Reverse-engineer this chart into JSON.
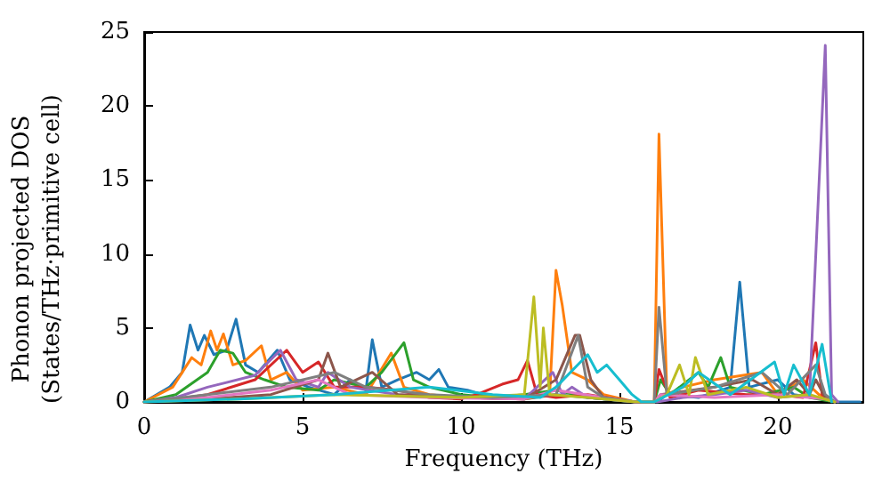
{
  "chart_data": {
    "type": "line",
    "xlabel": "Frequency (THz)",
    "ylabel": "Phonon projected DOS\n(States/THz·primitive cell)",
    "xlim": [
      0,
      22.7
    ],
    "xticks": [
      0,
      5,
      10,
      15,
      20
    ],
    "ylim": [
      0,
      25
    ],
    "yticks": [
      0,
      5,
      10,
      15,
      20,
      25
    ],
    "grid": false,
    "marker": "none",
    "line_style": "solid",
    "series": [
      {
        "color": "#1f77b4",
        "x": [
          0,
          0.8,
          1.2,
          1.45,
          1.7,
          1.9,
          2.2,
          2.6,
          2.9,
          3.2,
          3.6,
          4.2,
          4.6,
          5.2,
          6,
          6.5,
          7,
          7.2,
          7.5,
          8,
          8.6,
          9,
          9.3,
          9.6,
          10.2,
          11,
          12,
          13,
          14,
          15.5,
          16.2,
          16.5,
          17.5,
          18.5,
          18.8,
          19.1,
          20,
          20.5,
          21.5,
          21.8,
          22.6
        ],
        "values": [
          0,
          1,
          2,
          5.2,
          3.5,
          4.5,
          3.2,
          3.5,
          5.6,
          2.5,
          2,
          3.5,
          1.5,
          1,
          0.5,
          1.5,
          0.8,
          4.2,
          1,
          1.5,
          2,
          1.5,
          2.2,
          1,
          0.8,
          0.3,
          0.2,
          0.5,
          0.3,
          0,
          0,
          0.5,
          0.3,
          1,
          8.1,
          1,
          1.5,
          0.5,
          0.2,
          0,
          0
        ]
      },
      {
        "color": "#ff7f0e",
        "x": [
          0,
          0.9,
          1.5,
          1.8,
          2.1,
          2.3,
          2.5,
          2.8,
          3.2,
          3.7,
          4,
          4.5,
          5,
          6,
          7,
          7.8,
          8.2,
          9,
          10,
          12,
          12.8,
          13,
          13.2,
          13.5,
          14,
          14.5,
          15.5,
          16.1,
          16.25,
          16.5,
          17,
          18,
          19.5,
          20,
          20.8,
          21.3,
          21.8
        ],
        "values": [
          0,
          1,
          3,
          2.5,
          4.8,
          3.5,
          4.6,
          2.5,
          2.8,
          3.8,
          1.5,
          2,
          0.8,
          1,
          0.5,
          3.3,
          1,
          0.5,
          0.3,
          0.2,
          0.5,
          8.9,
          6.5,
          2,
          1.5,
          0.5,
          0,
          0,
          18.1,
          0.5,
          1,
          1.5,
          2,
          0.5,
          1.5,
          0.5,
          0
        ]
      },
      {
        "color": "#2ca02c",
        "x": [
          0,
          1,
          2,
          2.4,
          2.8,
          3.2,
          3.8,
          4.5,
          5.5,
          6,
          7,
          7.5,
          8.2,
          8.5,
          9,
          10,
          11,
          12,
          13,
          14,
          15.5,
          16.1,
          16.3,
          16.6,
          17.5,
          17.8,
          18.2,
          18.5,
          19.5,
          20.5,
          21,
          21.8
        ],
        "values": [
          0,
          0.5,
          2,
          3.5,
          3.3,
          2,
          1.5,
          1,
          0.8,
          1.5,
          1,
          2,
          4,
          1.5,
          1,
          0.5,
          0.3,
          0.5,
          0.8,
          0.3,
          0,
          0,
          1.5,
          0.5,
          2,
          1,
          3,
          1,
          0.5,
          1,
          0.3,
          0
        ]
      },
      {
        "color": "#d62728",
        "x": [
          0,
          1,
          2,
          3.5,
          4.5,
          5,
          5.5,
          6,
          7,
          8,
          9,
          10,
          10.5,
          11.3,
          11.8,
          12.1,
          12.4,
          13,
          14,
          15.5,
          16.1,
          16.25,
          16.6,
          17.5,
          19,
          20,
          20.8,
          21.2,
          21.4,
          21.8
        ],
        "values": [
          0,
          0.2,
          0.5,
          1.5,
          3.5,
          2,
          2.7,
          1,
          1,
          0.8,
          0.3,
          0.2,
          0.5,
          1.2,
          1.5,
          2.8,
          0.5,
          0.3,
          0.5,
          0,
          0,
          2.2,
          0.3,
          0.8,
          0.5,
          0.5,
          0.3,
          4,
          0.5,
          0
        ]
      },
      {
        "color": "#9467bd",
        "x": [
          0,
          1,
          2,
          3.5,
          4.3,
          4.8,
          5.5,
          5.8,
          6.5,
          8,
          10,
          12,
          12.9,
          13.2,
          13.5,
          14,
          15.5,
          16.2,
          17,
          18,
          19,
          20,
          21,
          21.5,
          21.7,
          21.9
        ],
        "values": [
          0,
          0.3,
          1,
          1.8,
          3.5,
          1.5,
          1,
          2,
          1,
          0.5,
          0.3,
          0.2,
          2,
          0.5,
          1,
          0.3,
          0,
          0,
          0.3,
          0.5,
          0.8,
          0.3,
          0.5,
          24.1,
          0.5,
          0
        ]
      },
      {
        "color": "#8c564b",
        "x": [
          0,
          2,
          4,
          5.5,
          5.8,
          6.2,
          7.2,
          8,
          10,
          12,
          13,
          13.6,
          13.75,
          14.1,
          14.5,
          15.5,
          16.1,
          16.3,
          18,
          19.2,
          20,
          20.6,
          21,
          21.2,
          21.5,
          21.8
        ],
        "values": [
          0,
          0.2,
          0.5,
          1.5,
          3.3,
          1,
          2,
          0.5,
          0.3,
          0.2,
          1.5,
          4.5,
          4.5,
          1.5,
          0.3,
          0,
          0,
          0.5,
          1,
          1.5,
          0.5,
          1.5,
          0.5,
          1.5,
          0.3,
          0
        ]
      },
      {
        "color": "#e377c2",
        "x": [
          0,
          2,
          4,
          5.5,
          6.5,
          9,
          12,
          13,
          14.5,
          15.5,
          16.1,
          16.3,
          18,
          20,
          21.5,
          21.8
        ],
        "values": [
          0,
          0.3,
          0.8,
          1.5,
          0.5,
          0.3,
          0.2,
          0.8,
          0.3,
          0,
          0,
          0.5,
          0.3,
          0.5,
          0.2,
          0
        ]
      },
      {
        "color": "#7f7f7f",
        "x": [
          0,
          2,
          4,
          6,
          7,
          9,
          11,
          13,
          13.7,
          14,
          14.5,
          15.5,
          16.1,
          16.25,
          16.5,
          18,
          19.5,
          20.3,
          21.2,
          21.5,
          21.8
        ],
        "values": [
          0,
          0.5,
          1,
          2,
          1,
          0.5,
          0.3,
          0.5,
          4.5,
          1,
          0.3,
          0,
          0,
          6.4,
          0.5,
          1,
          2,
          0.5,
          2.5,
          0.5,
          0
        ]
      },
      {
        "color": "#bcbd22",
        "x": [
          0,
          3,
          6,
          10,
          12,
          12.3,
          12.5,
          12.6,
          12.8,
          14,
          15.5,
          16.1,
          16.5,
          16.9,
          17.2,
          17.4,
          17.8,
          19,
          20,
          21,
          21.8
        ],
        "values": [
          0,
          0.2,
          0.5,
          0.3,
          0.5,
          7.1,
          1,
          5,
          0.5,
          0.3,
          0,
          0,
          0.5,
          2.5,
          0.5,
          3,
          0.5,
          1,
          0.3,
          0.5,
          0
        ]
      },
      {
        "color": "#17becf",
        "x": [
          0,
          3,
          6,
          9,
          11,
          12.5,
          13,
          14,
          14.3,
          14.6,
          15,
          15.4,
          15.7,
          16.1,
          17,
          17.5,
          18.5,
          19.9,
          20.2,
          20.5,
          21,
          21.4,
          21.7
        ],
        "values": [
          0,
          0.2,
          0.5,
          1,
          0.5,
          0.3,
          1,
          3.2,
          2,
          2.5,
          1.5,
          0.5,
          0,
          0,
          1,
          2,
          0.5,
          2.7,
          0.5,
          2.5,
          0.5,
          3.9,
          0
        ]
      }
    ]
  }
}
